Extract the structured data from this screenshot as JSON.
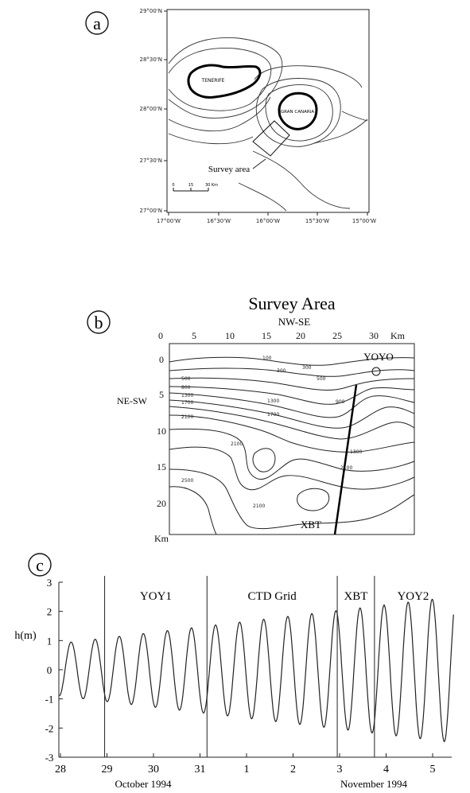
{
  "panel_labels": {
    "a": "a",
    "b": "b",
    "c": "c"
  },
  "map": {
    "lat_labels": [
      "29°00'N",
      "28°30'N",
      "28°00'N",
      "27°30'N",
      "27°00'N"
    ],
    "lon_labels": [
      "17°00'W",
      "16°30'W",
      "16°00'W",
      "15°30'W",
      "15°00'W"
    ],
    "island_1": "TENERIFE",
    "island_2": "GRAN CANARIA",
    "survey_label": "Survey area",
    "scale_ticks": [
      "0",
      "15",
      "30 Km"
    ]
  },
  "survey": {
    "title": "Survey Area",
    "top_axis_label": "NW-SE",
    "left_axis_label": "NE-SW",
    "x_ticks": [
      "0",
      "5",
      "10",
      "15",
      "20",
      "25",
      "30"
    ],
    "x_unit": "Km",
    "y_ticks": [
      "0",
      "5",
      "10",
      "15",
      "20"
    ],
    "y_unit": "Km",
    "yoyo_label": "YOYO",
    "xbt_label": "XBT",
    "contour_labels": [
      "100",
      "300",
      "500",
      "800",
      "900",
      "1300",
      "1300",
      "1700",
      "1700",
      "2100",
      "2100",
      "2100",
      "2500",
      "2100",
      "1300",
      "500",
      "300"
    ]
  },
  "chart_data": {
    "type": "line",
    "ylabel": "h(m)",
    "xlabel": "",
    "ylim": [
      -3,
      3
    ],
    "y_ticks": [
      "3",
      "2",
      "1",
      "0",
      "-1",
      "-2",
      "-3"
    ],
    "x_ticks": [
      "28",
      "29",
      "30",
      "31",
      "1",
      "2",
      "3",
      "4",
      "5"
    ],
    "month_labels": [
      "October 1994",
      "November 1994"
    ],
    "period_labels": [
      "YOY1",
      "CTD Grid",
      "XBT",
      "YOY2"
    ],
    "period_boundaries_day": [
      0.95,
      3.15,
      5.95,
      6.75
    ],
    "series": [
      {
        "values_desc": "",
        "amplitude_start": 0.9,
        "amplitude_end": 2.5,
        "period_days": 0.5175
      }
    ]
  }
}
